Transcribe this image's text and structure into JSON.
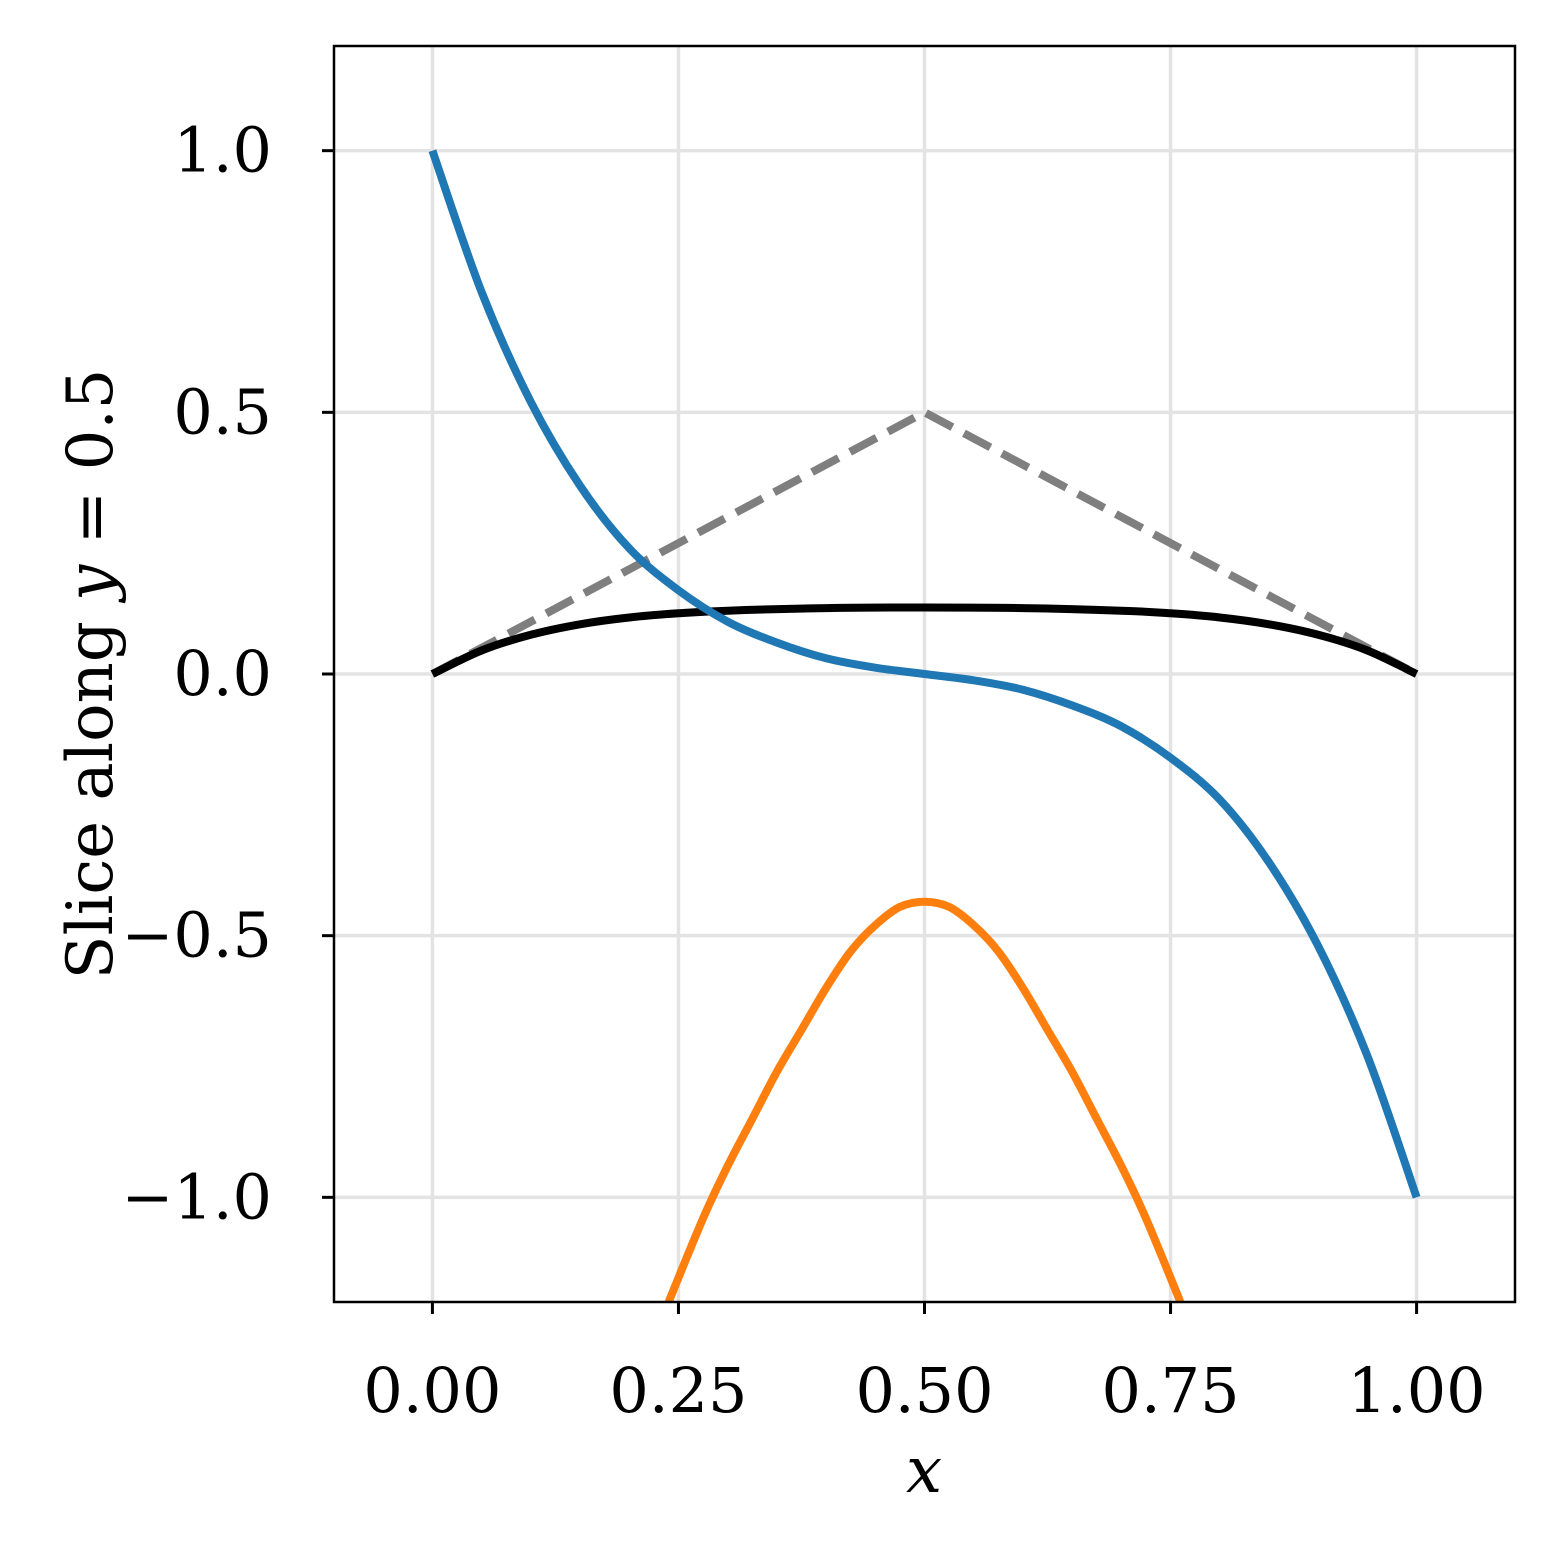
{
  "chart_data": {
    "type": "line",
    "title": "",
    "xlabel": "x",
    "ylabel_prefix": "Slice along ",
    "ylabel_var": "y",
    "ylabel_suffix": " = 0.5",
    "xlim": [
      -0.1,
      1.1
    ],
    "ylim": [
      -1.2,
      1.2
    ],
    "grid": true,
    "legend": "none",
    "x_ticks": [
      0.0,
      0.25,
      0.5,
      0.75,
      1.0
    ],
    "x_tick_labels": [
      "0.00",
      "0.25",
      "0.50",
      "0.75",
      "1.00"
    ],
    "y_ticks": [
      1.0,
      0.5,
      0.0,
      -0.5,
      -1.0
    ],
    "y_tick_labels": [
      "1.0",
      "0.5",
      "0.0",
      "−0.5",
      "−1.0"
    ],
    "series": [
      {
        "color": "#7f7f7f",
        "style": "dashed",
        "x": [
          0.0,
          0.5,
          1.0
        ],
        "values": [
          0.0,
          0.5,
          0.0
        ]
      },
      {
        "color": "#000000",
        "style": "solid",
        "x": [
          0.0,
          0.05,
          0.1,
          0.15,
          0.2,
          0.25,
          0.3,
          0.4,
          0.5,
          0.6,
          0.7,
          0.75,
          0.8,
          0.85,
          0.9,
          0.95,
          1.0
        ],
        "values": [
          0.0,
          0.045,
          0.075,
          0.095,
          0.108,
          0.116,
          0.121,
          0.126,
          0.127,
          0.126,
          0.121,
          0.116,
          0.108,
          0.095,
          0.075,
          0.045,
          0.0
        ]
      },
      {
        "color": "#1f77b4",
        "style": "solid",
        "x": [
          0.0,
          0.05,
          0.1,
          0.15,
          0.2,
          0.25,
          0.3,
          0.35,
          0.4,
          0.45,
          0.5,
          0.55,
          0.6,
          0.65,
          0.7,
          0.75,
          0.8,
          0.85,
          0.9,
          0.95,
          1.0
        ],
        "values": [
          1.0,
          0.73,
          0.52,
          0.36,
          0.24,
          0.16,
          0.1,
          0.06,
          0.03,
          0.012,
          0.0,
          -0.012,
          -0.03,
          -0.06,
          -0.1,
          -0.16,
          -0.24,
          -0.36,
          -0.52,
          -0.73,
          -1.0
        ]
      },
      {
        "color": "#ff7f0e",
        "style": "solid",
        "x": [
          0.24,
          0.275,
          0.3,
          0.325,
          0.35,
          0.375,
          0.4,
          0.425,
          0.45,
          0.475,
          0.5,
          0.525,
          0.55,
          0.575,
          0.6,
          0.625,
          0.65,
          0.675,
          0.7,
          0.725,
          0.76
        ],
        "values": [
          -1.2,
          -1.04,
          -0.94,
          -0.85,
          -0.76,
          -0.68,
          -0.6,
          -0.53,
          -0.48,
          -0.445,
          -0.435,
          -0.445,
          -0.48,
          -0.53,
          -0.6,
          -0.68,
          -0.76,
          -0.85,
          -0.94,
          -1.04,
          -1.2
        ]
      }
    ]
  }
}
